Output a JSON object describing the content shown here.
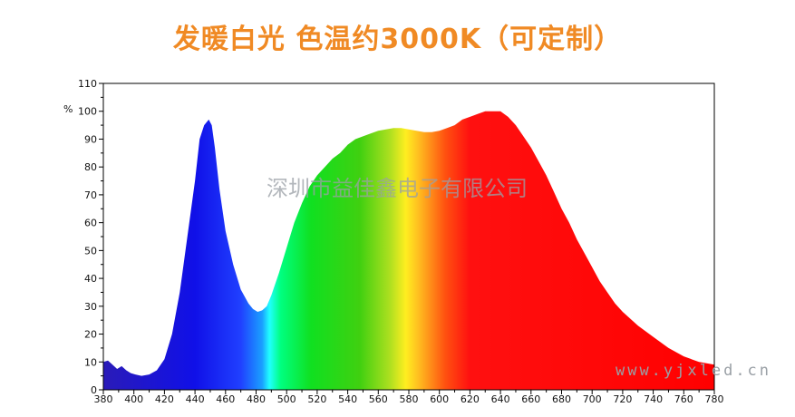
{
  "page": {
    "title": "发暖白光 色温约3000K（可定制）",
    "watermark_company": "深圳市益佳鑫电子有限公司",
    "watermark_url": "www.yjxled.cn"
  },
  "colors": {
    "title": "#f08a24",
    "frame": "#000000"
  },
  "chart_data": {
    "type": "area",
    "title": "",
    "xlabel": "",
    "ylabel": "%",
    "xlim": [
      380,
      780
    ],
    "ylim": [
      0,
      110
    ],
    "x_ticks": [
      380,
      400,
      420,
      440,
      460,
      480,
      500,
      520,
      540,
      560,
      580,
      600,
      620,
      640,
      660,
      680,
      700,
      720,
      740,
      760,
      780
    ],
    "y_ticks": [
      0,
      10,
      20,
      30,
      40,
      50,
      60,
      70,
      80,
      90,
      100,
      110
    ],
    "grid": false,
    "fill": "wavelength-spectrum-colors",
    "series": [
      {
        "x": [
          380,
          383,
          386,
          389,
          392,
          395,
          398,
          401,
          405,
          410,
          415,
          420,
          425,
          430,
          435,
          440,
          443,
          446,
          449,
          451,
          453,
          456,
          460,
          465,
          470,
          475,
          478,
          481,
          484,
          487,
          490,
          495,
          500,
          505,
          510,
          515,
          520,
          525,
          530,
          535,
          540,
          545,
          550,
          555,
          560,
          565,
          570,
          575,
          580,
          585,
          590,
          595,
          600,
          605,
          610,
          615,
          620,
          625,
          630,
          635,
          640,
          645,
          650,
          655,
          660,
          665,
          670,
          675,
          680,
          685,
          690,
          695,
          700,
          705,
          710,
          715,
          720,
          730,
          740,
          750,
          760,
          770,
          780
        ],
        "y": [
          10,
          10.5,
          9,
          7.5,
          8.5,
          7,
          6,
          5.5,
          5,
          5.5,
          7,
          11,
          20,
          35,
          55,
          75,
          90,
          95,
          97,
          95,
          87,
          72,
          57,
          45,
          36,
          31,
          29,
          28,
          28.5,
          30,
          34,
          42,
          51,
          60,
          67,
          73,
          77,
          80,
          83,
          85,
          88,
          90,
          91,
          92,
          93,
          93.5,
          94,
          94,
          93.5,
          93,
          92.5,
          92.5,
          93,
          94,
          95,
          97,
          98,
          99,
          100,
          100,
          100,
          98,
          95,
          91,
          87,
          82,
          77,
          71,
          65,
          60,
          54,
          49,
          44,
          39,
          35,
          31,
          28,
          23,
          19,
          15,
          12,
          10,
          9
        ]
      }
    ]
  }
}
